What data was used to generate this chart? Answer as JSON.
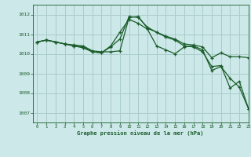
{
  "bg_color": "#cce8e8",
  "grid_color": "#aacccc",
  "line_color": "#1a5c2a",
  "title": "Graphe pression niveau de la mer (hPa)",
  "xlim": [
    -0.5,
    23
  ],
  "ylim": [
    1006.5,
    1012.5
  ],
  "yticks": [
    1007,
    1008,
    1009,
    1010,
    1011,
    1012
  ],
  "xticks": [
    0,
    1,
    2,
    3,
    4,
    5,
    6,
    7,
    8,
    9,
    10,
    11,
    12,
    13,
    14,
    15,
    16,
    17,
    18,
    19,
    20,
    21,
    22,
    23
  ],
  "series1_x": [
    0,
    1,
    2,
    3,
    4,
    5,
    6,
    7,
    8,
    9,
    10,
    11,
    12,
    13,
    14,
    15,
    16,
    17,
    18,
    19,
    20,
    21,
    22,
    23
  ],
  "series1_y": [
    1010.6,
    1010.7,
    1010.6,
    1010.5,
    1010.45,
    1010.4,
    1010.15,
    1010.1,
    1010.1,
    1010.15,
    1011.85,
    1011.9,
    1011.3,
    1011.1,
    1010.9,
    1010.75,
    1010.5,
    1010.45,
    1010.35,
    1009.8,
    1010.05,
    1009.85,
    1009.85,
    1009.8
  ],
  "series2_x": [
    0,
    1,
    2,
    3,
    4,
    5,
    6,
    7,
    8,
    9,
    10,
    11,
    12,
    13,
    14,
    15,
    16,
    17,
    18,
    19,
    20,
    21,
    22,
    23
  ],
  "series2_y": [
    1010.6,
    1010.7,
    1010.6,
    1010.5,
    1010.4,
    1010.35,
    1010.1,
    1010.05,
    1010.35,
    1010.75,
    1011.9,
    1011.85,
    1011.35,
    1011.1,
    1010.85,
    1010.7,
    1010.4,
    1010.35,
    1010.1,
    1009.35,
    1009.4,
    1008.25,
    1008.6,
    1007.2
  ],
  "series3_x": [
    0,
    1,
    2,
    3,
    4,
    5,
    6,
    7,
    8,
    9,
    10,
    11,
    12,
    13,
    14,
    15,
    16,
    17,
    18,
    19,
    20,
    21,
    22,
    23
  ],
  "series3_y": [
    1010.6,
    1010.7,
    1010.6,
    1010.5,
    1010.4,
    1010.3,
    1010.1,
    1010.05,
    1010.4,
    1011.1,
    1011.75,
    1011.55,
    1011.25,
    1010.4,
    1010.2,
    1010.0,
    1010.35,
    1010.4,
    1010.2,
    1009.15,
    1009.35,
    1008.75,
    1008.3,
    1007.2
  ]
}
